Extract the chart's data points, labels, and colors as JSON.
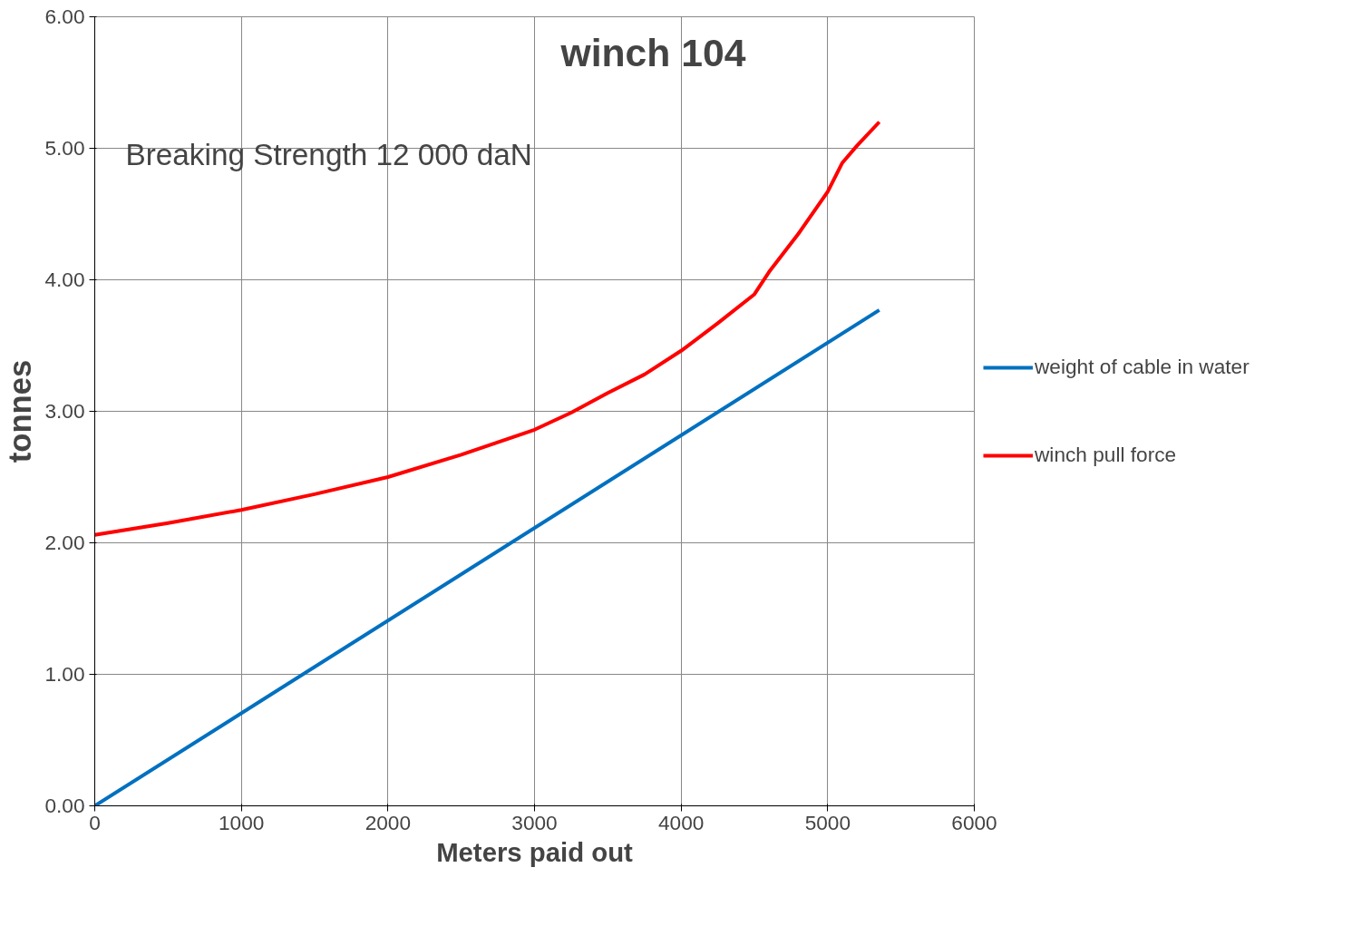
{
  "chart_data": {
    "type": "line",
    "title": "winch 104",
    "xlabel": "Meters paid out",
    "ylabel": "tonnes",
    "annotations": [
      "Breaking Strength 12 000 daN"
    ],
    "series": [
      {
        "name": "weight of cable in water",
        "color": "#0070c0",
        "x": [
          0,
          5352
        ],
        "values": [
          0,
          3.77
        ]
      },
      {
        "name": "winch pull force",
        "color": "#ff0000",
        "x": [
          0,
          500,
          1000,
          1500,
          2000,
          2500,
          3000,
          3250,
          3500,
          3750,
          4000,
          4250,
          4500,
          4600,
          4800,
          5000,
          5100,
          5200,
          5352
        ],
        "values": [
          2.06,
          2.15,
          2.25,
          2.37,
          2.5,
          2.67,
          2.86,
          2.99,
          3.14,
          3.28,
          3.46,
          3.67,
          3.89,
          4.06,
          4.35,
          4.67,
          4.89,
          5.02,
          5.2
        ]
      }
    ],
    "xlim": [
      0,
      6000
    ],
    "xticks": [
      0,
      1000,
      2000,
      3000,
      4000,
      5000,
      6000
    ],
    "ylim": [
      0,
      6
    ],
    "yticks": [
      {
        "value": 0,
        "label": "0.00"
      },
      {
        "value": 1,
        "label": "1.00"
      },
      {
        "value": 2,
        "label": "2.00"
      },
      {
        "value": 3,
        "label": "3.00"
      },
      {
        "value": 4,
        "label": "4.00"
      },
      {
        "value": 5,
        "label": "5.00"
      },
      {
        "value": 6,
        "label": "6.00"
      }
    ],
    "grid": true,
    "legend": "right",
    "marker": "none",
    "line_style": "solid"
  }
}
